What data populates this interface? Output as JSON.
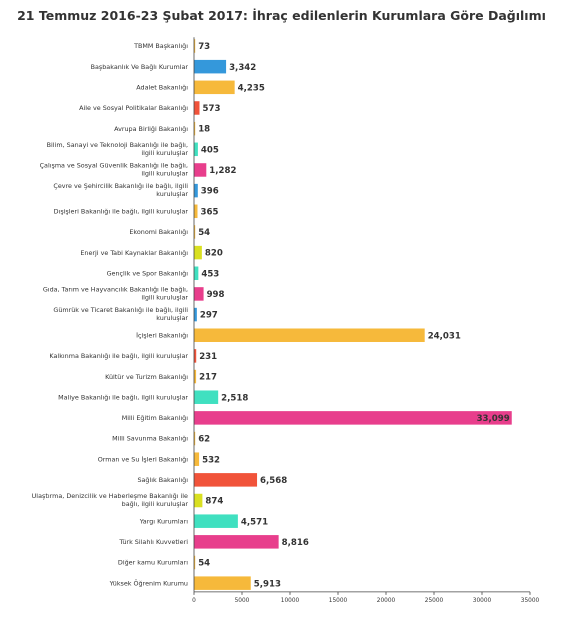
{
  "chart_data": {
    "type": "bar",
    "orientation": "horizontal",
    "title": "21 Temmuz 2016-23 Şubat 2017: İhraç edilenlerin Kurumlara Göre Dağılımı",
    "xlim": [
      0,
      35000
    ],
    "xticks": [
      "0",
      "5000",
      "10000",
      "15000",
      "20000",
      "25000",
      "30000",
      "35000"
    ],
    "grid": false,
    "categories": [
      "TBMM Başkanlığı",
      "Başbakanlık Ve Bağlı Kurumlar",
      "Adalet Bakanlığı",
      "Aile ve Sosyal Politikalar Bakanlığı",
      "Avrupa Birliği Bakanlığı",
      "Bilim, Sanayi ve Teknoloji Bakanlığı ile bağlı, ilgili kuruluşlar",
      "Çalışma ve Sosyal Güvenlik Bakanlığı ile bağlı, ilgili kuruluşlar",
      "Çevre ve Şehircilik Bakanlığı ile bağlı, ilgili kuruluşlar",
      "Dışişleri Bakanlığı ile bağlı, ilgili kuruluşlar",
      "Ekonomi Bakanlığı",
      "Enerji ve Tabi Kaynaklar Bakanlığı",
      "Gençlik ve Spor Bakanlığı",
      "Gıda, Tarım ve Hayvancılık Bakanlığı ile bağlı, ilgili kuruluşlar",
      "Gümrük ve Ticaret Bakanlığı ile bağlı, ilgili kuruluşlar",
      "İçişleri Bakanlığı",
      "Kalkınma Bakanlığı ile bağlı, ilgili kuruluşlar",
      "Kültür ve Turizm Bakanlığı",
      "Maliye Bakanlığı ile bağlı, ilgili kuruluşlar",
      "Milli Eğitim Bakanlığı",
      "Milli Savunma Bakanlığı",
      "Orman ve Su İşleri Bakanlığı",
      "Sağlık Bakanlığı",
      "Ulaştırma, Denizcilik ve Haberleşme Bakanlığı ile bağlı, ilgili kuruluşlar",
      "Yargı Kurumları",
      "Türk Silahlı Kuvvetleri",
      "Diğer kamu Kurumları",
      "Yüksek Öğrenim Kurumu"
    ],
    "values": [
      73,
      3342,
      4235,
      573,
      18,
      405,
      1282,
      396,
      365,
      54,
      820,
      453,
      998,
      297,
      24031,
      231,
      217,
      2518,
      33099,
      62,
      532,
      6568,
      874,
      4571,
      8816,
      54,
      5913
    ],
    "value_labels": [
      "73",
      "3,342",
      "4,235",
      "573",
      "18",
      "405",
      "1,282",
      "396",
      "365",
      "54",
      "820",
      "453",
      "998",
      "297",
      "24,031",
      "231",
      "217",
      "2,518",
      "33,099",
      "62",
      "532",
      "6,568",
      "874",
      "4,571",
      "8,816",
      "54",
      "5,913"
    ],
    "colors": [
      "#f6b93b",
      "#3498db",
      "#f6b93b",
      "#f1533a",
      "#f6b93b",
      "#40e0c0",
      "#e83e8c",
      "#3498db",
      "#f6b93b",
      "#f6b93b",
      "#d9e021",
      "#40e0c0",
      "#e83e8c",
      "#3498db",
      "#f6b93b",
      "#f1533a",
      "#f6b93b",
      "#40e0c0",
      "#e83e8c",
      "#f6b93b",
      "#f6b93b",
      "#f1533a",
      "#d9e021",
      "#40e0c0",
      "#e83e8c",
      "#f6b93b",
      "#f6b93b"
    ]
  }
}
